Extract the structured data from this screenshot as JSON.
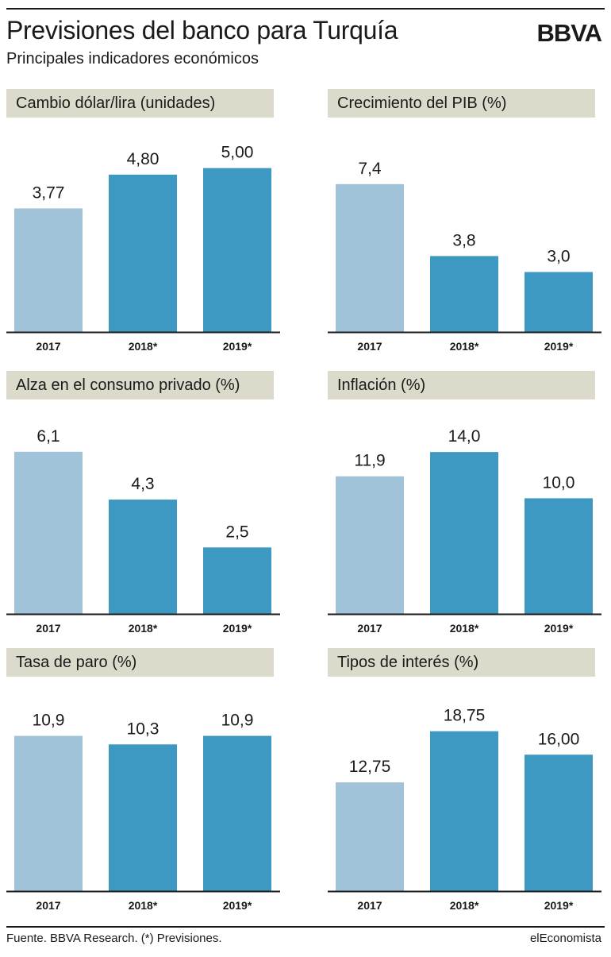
{
  "header": {
    "title": "Previsiones del banco para Turquía",
    "subtitle": "Principales indicadores económicos",
    "logo": "BBVA"
  },
  "footer": {
    "source": "Fuente. BBVA Research. (*) Previsiones.",
    "brand": "elEconomista"
  },
  "colors": {
    "bar_first": "#a0c3d9",
    "bar_other": "#3d98c2",
    "header_bg": "#dcdacb",
    "rule": "#1a1a1a"
  },
  "chart_data": [
    {
      "type": "bar",
      "title": "Cambio dólar/lira (unidades)",
      "categories": [
        "2017",
        "2018*",
        "2019*"
      ],
      "values": [
        3.77,
        4.8,
        5.0
      ],
      "labels": [
        "3,77",
        "4,80",
        "5,00"
      ]
    },
    {
      "type": "bar",
      "title": "Crecimiento del PIB (%)",
      "categories": [
        "2017",
        "2018*",
        "2019*"
      ],
      "values": [
        7.4,
        3.8,
        3.0
      ],
      "labels": [
        "7,4",
        "3,8",
        "3,0"
      ]
    },
    {
      "type": "bar",
      "title": "Alza en el consumo privado (%)",
      "categories": [
        "2017",
        "2018*",
        "2019*"
      ],
      "values": [
        6.1,
        4.3,
        2.5
      ],
      "labels": [
        "6,1",
        "4,3",
        "2,5"
      ]
    },
    {
      "type": "bar",
      "title": "Inflación (%)",
      "categories": [
        "2017",
        "2018*",
        "2019*"
      ],
      "values": [
        11.9,
        14.0,
        10.0
      ],
      "labels": [
        "11,9",
        "14,0",
        "10,0"
      ]
    },
    {
      "type": "bar",
      "title": "Tasa de paro (%)",
      "categories": [
        "2017",
        "2018*",
        "2019*"
      ],
      "values": [
        10.9,
        10.3,
        10.9
      ],
      "labels": [
        "10,9",
        "10,3",
        "10,9"
      ]
    },
    {
      "type": "bar",
      "title": "Tipos de interés (%)",
      "categories": [
        "2017",
        "2018*",
        "2019*"
      ],
      "values": [
        12.75,
        18.75,
        16.0
      ],
      "labels": [
        "12,75",
        "18,75",
        "16,00"
      ]
    }
  ]
}
